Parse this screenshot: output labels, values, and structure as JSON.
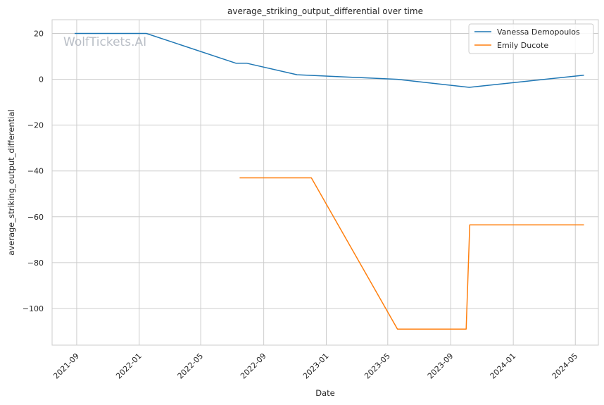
{
  "chart_data": {
    "type": "line",
    "title": "average_striking_output_differential over time",
    "xlabel": "Date",
    "ylabel": "average_striking_output_differential",
    "watermark": "WolfTickets.AI",
    "x_range": [
      "2021-07-15",
      "2024-06-15"
    ],
    "ylim": [
      -116,
      26
    ],
    "x_ticks": [
      {
        "date": "2021-09-01",
        "label": "2021-09"
      },
      {
        "date": "2022-01-01",
        "label": "2022-01"
      },
      {
        "date": "2022-05-01",
        "label": "2022-05"
      },
      {
        "date": "2022-09-01",
        "label": "2022-09"
      },
      {
        "date": "2023-01-01",
        "label": "2023-01"
      },
      {
        "date": "2023-05-01",
        "label": "2023-05"
      },
      {
        "date": "2023-09-01",
        "label": "2023-09"
      },
      {
        "date": "2024-01-01",
        "label": "2024-01"
      },
      {
        "date": "2024-05-01",
        "label": "2024-05"
      }
    ],
    "y_ticks": [
      {
        "value": 20,
        "label": "20"
      },
      {
        "value": 0,
        "label": "0"
      },
      {
        "value": -20,
        "label": "−20"
      },
      {
        "value": -40,
        "label": "−40"
      },
      {
        "value": -60,
        "label": "−60"
      },
      {
        "value": -80,
        "label": "−80"
      },
      {
        "value": -100,
        "label": "−100"
      }
    ],
    "grid": true,
    "legend_position": "top-right",
    "series": [
      {
        "name": "Vanessa Demopoulos",
        "color": "#1f77b4",
        "points": [
          {
            "x": "2021-08-28",
            "y": 20
          },
          {
            "x": "2022-01-15",
            "y": 20
          },
          {
            "x": "2022-07-09",
            "y": 7
          },
          {
            "x": "2022-07-30",
            "y": 7
          },
          {
            "x": "2022-11-05",
            "y": 2
          },
          {
            "x": "2023-05-20",
            "y": 0
          },
          {
            "x": "2023-10-07",
            "y": -3.5
          },
          {
            "x": "2024-05-18",
            "y": 1.8
          }
        ]
      },
      {
        "name": "Emily Ducote",
        "color": "#ff7f0e",
        "points": [
          {
            "x": "2022-07-16",
            "y": -43
          },
          {
            "x": "2022-12-03",
            "y": -43
          },
          {
            "x": "2023-05-20",
            "y": -109
          },
          {
            "x": "2023-10-01",
            "y": -109
          },
          {
            "x": "2023-10-08",
            "y": -63.5
          },
          {
            "x": "2024-05-18",
            "y": -63.5
          }
        ]
      }
    ]
  }
}
